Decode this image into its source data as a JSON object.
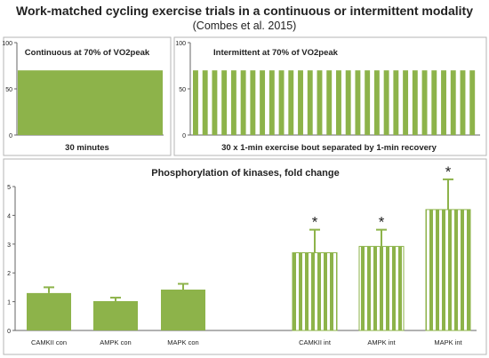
{
  "title": "Work-matched cycling exercise trials in a continuous or intermittent modality",
  "subtitle": "(Combes et al. 2015)",
  "colors": {
    "bar": "#8db34a",
    "error": "#8db34a",
    "frame": "#b4b4b4",
    "axis": "#666666",
    "text": "#222222"
  },
  "chart_data": [
    {
      "type": "bar",
      "title": "Continuous at 70% of VO2peak",
      "xlabel": "30 minutes",
      "ylim": [
        0,
        100
      ],
      "yticks": [
        0,
        50,
        100
      ],
      "values": [
        70
      ],
      "pattern": "solid"
    },
    {
      "type": "bar",
      "title": "Intermittent at 70% of VO2peak",
      "xlabel": "30 x 1-min exercise bout separated by 1-min recovery",
      "ylim": [
        0,
        100
      ],
      "yticks": [
        0,
        50,
        100
      ],
      "bouts": 30,
      "values": [
        70
      ],
      "pattern": "striped"
    },
    {
      "type": "bar",
      "title": "Phosphorylation of kinases, fold change",
      "ylim": [
        0,
        5
      ],
      "yticks": [
        0,
        1,
        2,
        3,
        4,
        5
      ],
      "categories": [
        "CAMKII con",
        "AMPK con",
        "MAPK con",
        "CAMKII int",
        "AMPK int",
        "MAPK int"
      ],
      "values": [
        1.3,
        1.02,
        1.42,
        2.7,
        2.92,
        4.2
      ],
      "errors": [
        0.2,
        0.12,
        0.2,
        0.8,
        0.58,
        1.05
      ],
      "significance": [
        "",
        "",
        "",
        "*",
        "*",
        "*"
      ],
      "patterns": [
        "solid",
        "solid",
        "solid",
        "striped",
        "striped",
        "striped"
      ]
    }
  ]
}
